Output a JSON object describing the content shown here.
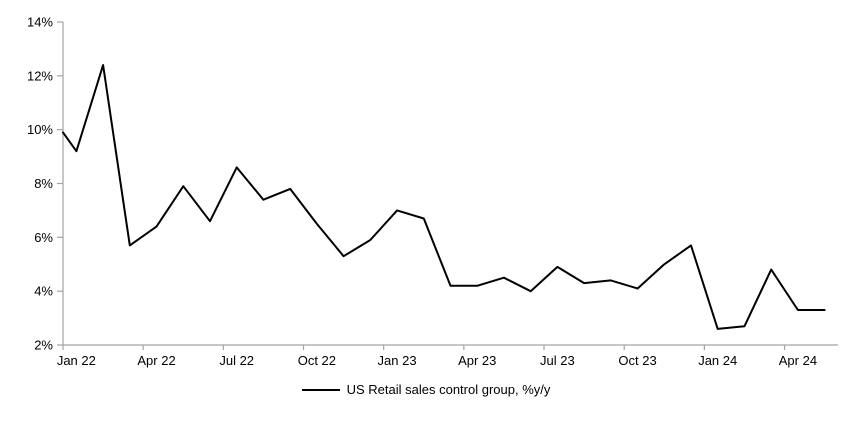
{
  "chart_data": {
    "type": "line",
    "title": "",
    "xlabel": "",
    "ylabel": "",
    "categories": [
      "Jan 22",
      "Feb 22",
      "Mar 22",
      "Apr 22",
      "May 22",
      "Jun 22",
      "Jul 22",
      "Aug 22",
      "Sep 22",
      "Oct 22",
      "Nov 22",
      "Dec 22",
      "Jan 23",
      "Feb 23",
      "Mar 23",
      "Apr 23",
      "May 23",
      "Jun 23",
      "Jul 23",
      "Aug 23",
      "Sep 23",
      "Oct 23",
      "Nov 23",
      "Dec 23",
      "Jan 24",
      "Feb 24",
      "Mar 24",
      "Apr 24",
      "May 24"
    ],
    "series": [
      {
        "name": "US Retail sales control group, %y/y",
        "color": "#000000",
        "values": [
          9.2,
          12.4,
          5.7,
          6.4,
          7.9,
          6.6,
          8.6,
          7.4,
          7.8,
          6.5,
          5.3,
          5.9,
          7.0,
          6.7,
          4.2,
          4.2,
          4.5,
          4.0,
          4.9,
          4.3,
          4.4,
          4.1,
          5.0,
          5.7,
          2.6,
          2.7,
          4.8,
          3.3,
          3.3
        ],
        "leading_edge_value_at_axis": 9.9
      }
    ],
    "x_tick_label_every": 3,
    "x_tick_labels_shown": [
      "Jan 22",
      "Apr 22",
      "Jul 22",
      "Oct 22",
      "Jan 23",
      "Apr 23",
      "Jul 23",
      "Oct 23",
      "Jan 24",
      "Apr 24"
    ],
    "y_tick_labels": [
      "2%",
      "4%",
      "6%",
      "8%",
      "10%",
      "12%",
      "14%"
    ],
    "ylim": [
      2,
      14
    ],
    "y_step": 2,
    "grid": false,
    "legend_position": "bottom",
    "legend_label": "US Retail sales control group, %y/y",
    "axis_color": "#a3a3a3",
    "line_color": "#000000"
  }
}
